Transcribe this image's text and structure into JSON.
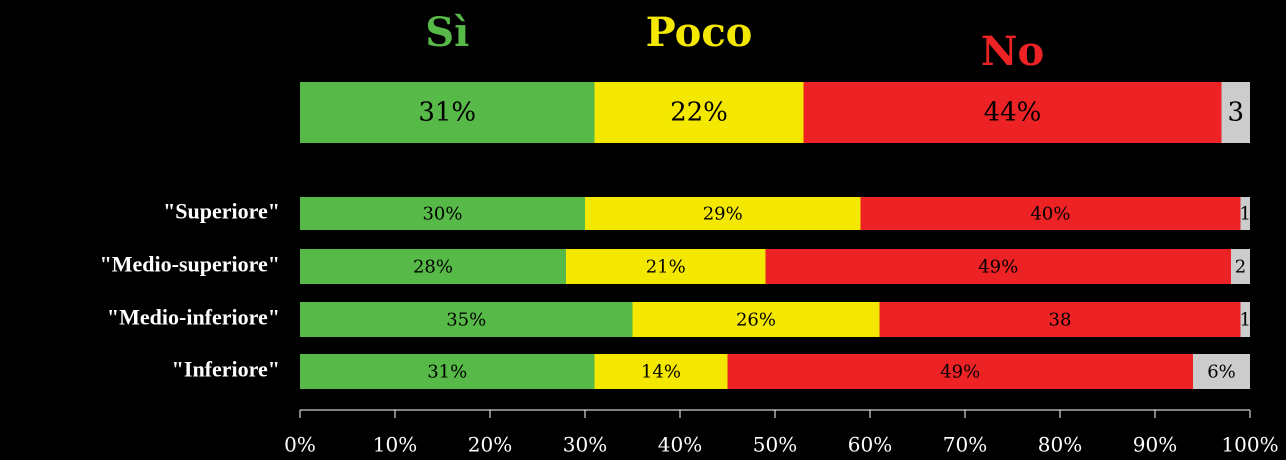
{
  "chart_data": {
    "type": "stacked-bar-horizontal",
    "categories": [
      null,
      "\"Superiore\"",
      "\"Medio-superiore\"",
      "\"Medio-inferiore\"",
      "\"Inferiore\""
    ],
    "series": [
      {
        "name": "Sì",
        "color": "#57b947",
        "values": [
          31,
          30,
          28,
          35,
          31
        ],
        "value_labels": [
          "31%",
          "30%",
          "28%",
          "35%",
          "31%"
        ]
      },
      {
        "name": "Poco",
        "color": "#f5e800",
        "values": [
          22,
          29,
          21,
          26,
          14
        ],
        "value_labels": [
          "22%",
          "29%",
          "21%",
          "26%",
          "14%"
        ]
      },
      {
        "name": "No",
        "color": "#ec2224",
        "values": [
          44,
          40,
          49,
          38,
          49
        ],
        "value_labels": [
          "44%",
          "40%",
          "49%",
          "38",
          "49%"
        ]
      },
      {
        "color": "#cccccc",
        "values": [
          3,
          1,
          2,
          1,
          6
        ],
        "value_labels": [
          "3",
          "1",
          "2",
          "1",
          "6%"
        ]
      }
    ],
    "xlim": [
      0,
      100
    ],
    "xticks": [
      {
        "value": 0,
        "label": "0%"
      },
      {
        "value": 10,
        "label": "10%"
      },
      {
        "value": 20,
        "label": "20%"
      },
      {
        "value": 30,
        "label": "30%"
      },
      {
        "value": 40,
        "label": "40%"
      },
      {
        "value": 50,
        "label": "50%"
      },
      {
        "value": 60,
        "label": "60%"
      },
      {
        "value": 70,
        "label": "70%"
      },
      {
        "value": 80,
        "label": "80%"
      },
      {
        "value": 90,
        "label": "90%"
      },
      {
        "value": 100,
        "label": "100%"
      }
    ]
  }
}
